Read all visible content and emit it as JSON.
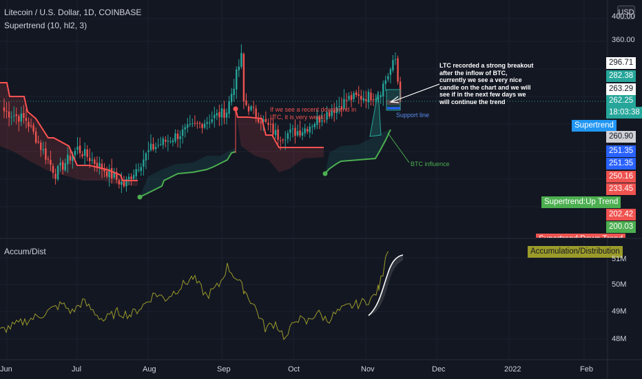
{
  "header": {
    "symbol_line": "Litecoin / U.S. Dollar, 1D, COINBASE",
    "indicator_line": "Supertrend (10, hl2, 3)",
    "currency_button": "USD"
  },
  "lower_pane": {
    "title": "Accum/Dist"
  },
  "annotations": {
    "breakout_note": "LTC recorded a strong breakout\nafter the inflow of BTC,\ncurrently we see a very nice\ncandle on the chart and we will\nsee if in the next few days we\nwill continue the trend",
    "downtrend_note": "If we see a recent downtrend in\nLTC, it is very weak",
    "support_label": "Support line",
    "btc_label": "BTC influence"
  },
  "price_axis": {
    "ticks": [
      "400.00",
      "360.00"
    ],
    "tags": [
      {
        "text": "296.71",
        "style": "white"
      },
      {
        "text": "282.38",
        "style": "green"
      },
      {
        "text": "263.29",
        "style": "white"
      },
      {
        "text": "262.25",
        "style": "teal"
      },
      {
        "text": "18:03:38",
        "style": "teal"
      },
      {
        "text": "260.90",
        "style": "grey"
      },
      {
        "text": "251.35",
        "style": "blue"
      },
      {
        "text": "251.35",
        "style": "blue"
      },
      {
        "text": "250.16",
        "style": "red"
      },
      {
        "text": "233.45",
        "style": "red"
      },
      {
        "text": "202.42",
        "style": "red"
      },
      {
        "text": "200.03",
        "style": "green"
      }
    ],
    "series_labels": [
      "Supertrend",
      "Supertrend:Up Trend",
      "Supertrend:Down Trend"
    ]
  },
  "ad_axis": {
    "ticks": [
      "51M",
      "50M",
      "49M",
      "48M"
    ],
    "series_label": "Accumulation/Distribution"
  },
  "time_axis": {
    "labels": [
      "Jun",
      "Jul",
      "Aug",
      "Sep",
      "Oct",
      "Nov",
      "Dec",
      "2022",
      "Feb"
    ]
  },
  "colors": {
    "background": "#131722",
    "up": "#26a69a",
    "down": "#ef5350",
    "supertrend_up": "#4caf50",
    "supertrend_down": "#ff5252",
    "ad_line": "#9b9b2a",
    "accent_blue": "#2962ff"
  },
  "chart_data": [
    {
      "type": "candlestick",
      "title": "Litecoin / U.S. Dollar, 1D, COINBASE",
      "unit": "USD",
      "x_range": [
        "2021-06-01",
        "2022-02-28"
      ],
      "approx_close_path": [
        {
          "date": "2021-06-01",
          "close": 255
        },
        {
          "date": "2021-06-10",
          "close": 248
        },
        {
          "date": "2021-06-22",
          "close": 205
        },
        {
          "date": "2021-07-01",
          "close": 225
        },
        {
          "date": "2021-07-20",
          "close": 196
        },
        {
          "date": "2021-07-31",
          "close": 225
        },
        {
          "date": "2021-08-15",
          "close": 240
        },
        {
          "date": "2021-08-31",
          "close": 255
        },
        {
          "date": "2021-09-06",
          "close": 298
        },
        {
          "date": "2021-09-07",
          "close": 262
        },
        {
          "date": "2021-09-21",
          "close": 235
        },
        {
          "date": "2021-10-01",
          "close": 240
        },
        {
          "date": "2021-10-20",
          "close": 265
        },
        {
          "date": "2021-11-01",
          "close": 268
        },
        {
          "date": "2021-11-08",
          "close": 296
        },
        {
          "date": "2021-11-10",
          "close": 262.25
        }
      ],
      "last_price": 262.25,
      "last_high": 296.71,
      "supertrend": {
        "period": 10,
        "source": "hl2",
        "multiplier": 3,
        "last_up_value": 200.03
      }
    },
    {
      "type": "line",
      "title": "Accum/Dist",
      "unit": "M",
      "y_ticks": [
        48,
        49,
        50,
        51
      ],
      "approx_points": [
        {
          "date": "2021-06-01",
          "value": 48.3
        },
        {
          "date": "2021-07-01",
          "value": 48.8
        },
        {
          "date": "2021-08-01",
          "value": 49.6
        },
        {
          "date": "2021-08-20",
          "value": 49.9
        },
        {
          "date": "2021-09-01",
          "value": 50.4
        },
        {
          "date": "2021-09-15",
          "value": 49.5
        },
        {
          "date": "2021-10-01",
          "value": 48.2
        },
        {
          "date": "2021-10-20",
          "value": 48.9
        },
        {
          "date": "2021-11-01",
          "value": 49.2
        },
        {
          "date": "2021-11-10",
          "value": 51.2
        }
      ]
    }
  ]
}
